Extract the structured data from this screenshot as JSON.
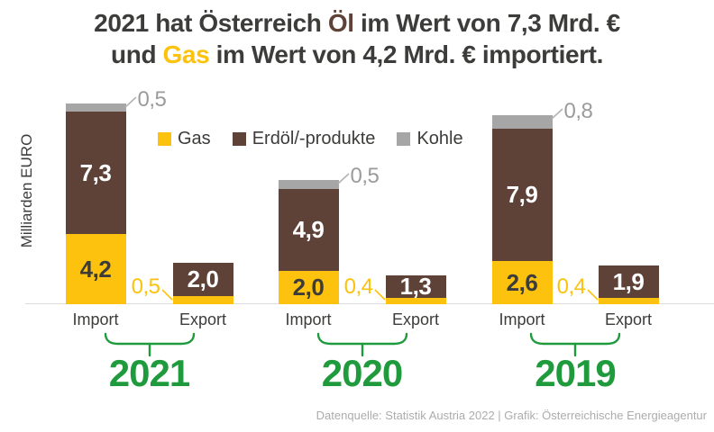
{
  "title": {
    "lines": [
      {
        "segments": [
          {
            "text": "2021 hat Österreich ",
            "color": "#3C3C3B"
          },
          {
            "text": "Öl",
            "color": "#5E4137"
          },
          {
            "text": " im Wert von 7,3 Mrd. €",
            "color": "#3C3C3B"
          }
        ]
      },
      {
        "segments": [
          {
            "text": "und ",
            "color": "#3C3C3B"
          },
          {
            "text": "Gas",
            "color": "#FCC20E"
          },
          {
            "text": " im Wert von 4,2 Mrd. € importiert.",
            "color": "#3C3C3B"
          }
        ]
      }
    ]
  },
  "axis": {
    "ylabel": "Milliarden EURO"
  },
  "legend": {
    "items": [
      {
        "label": "Gas",
        "color": "#FCC20E"
      },
      {
        "label": "Erdöl/-produkte",
        "color": "#5E4137"
      },
      {
        "label": "Kohle",
        "color": "#A6A6A6"
      }
    ]
  },
  "footer": {
    "source": "Datenquelle: Statistik Austria 2022 | Grafik: Österreichische Energieagentur"
  },
  "colors": {
    "accent_green": "#1F9B3D",
    "text_dark": "#3C3C3B",
    "callout_gray": "#9C9B9B",
    "gas_yellow": "#FCC20E",
    "oil_brown": "#5E4137",
    "coal_gray": "#A6A6A6",
    "axis_gray": "#DCDCDC"
  },
  "chart_data": {
    "type": "bar",
    "stacked": true,
    "title": "2021 hat Österreich Öl im Wert von 7,3 Mrd. € und Gas im Wert von 4,2 Mrd. € importiert.",
    "ylabel": "Milliarden EURO",
    "unit": "Mrd. EUR",
    "grid": false,
    "legend_position": "top-left-of-plot",
    "series": [
      "Gas",
      "Erdöl/-produkte",
      "Kohle"
    ],
    "series_colors": {
      "Gas": "#FCC20E",
      "Erdöl/-produkte": "#5E4137",
      "Kohle": "#A6A6A6"
    },
    "categories_per_group": [
      "Import",
      "Export"
    ],
    "groups": [
      {
        "year": "2021",
        "bars": [
          {
            "label": "Import",
            "total": 12.0,
            "segments": [
              {
                "series": "Gas",
                "value": 4.2,
                "display": "4,2",
                "label_pos": "inside"
              },
              {
                "series": "Erdöl/-produkte",
                "value": 7.3,
                "display": "7,3",
                "label_pos": "inside"
              },
              {
                "series": "Kohle",
                "value": 0.5,
                "display": "0,5",
                "label_pos": "callout-top"
              }
            ]
          },
          {
            "label": "Export",
            "total": 2.5,
            "segments": [
              {
                "series": "Gas",
                "value": 0.5,
                "display": "0,5",
                "label_pos": "callout-left"
              },
              {
                "series": "Erdöl/-produkte",
                "value": 2.0,
                "display": "2,0",
                "label_pos": "inside"
              }
            ]
          }
        ]
      },
      {
        "year": "2020",
        "bars": [
          {
            "label": "Import",
            "total": 7.4,
            "segments": [
              {
                "series": "Gas",
                "value": 2.0,
                "display": "2,0",
                "label_pos": "inside"
              },
              {
                "series": "Erdöl/-produkte",
                "value": 4.9,
                "display": "4,9",
                "label_pos": "inside"
              },
              {
                "series": "Kohle",
                "value": 0.5,
                "display": "0,5",
                "label_pos": "callout-top"
              }
            ]
          },
          {
            "label": "Export",
            "total": 1.7,
            "segments": [
              {
                "series": "Gas",
                "value": 0.4,
                "display": "0,4",
                "label_pos": "callout-left"
              },
              {
                "series": "Erdöl/-produkte",
                "value": 1.3,
                "display": "1,3",
                "label_pos": "inside"
              }
            ]
          }
        ]
      },
      {
        "year": "2019",
        "bars": [
          {
            "label": "Import",
            "total": 11.3,
            "segments": [
              {
                "series": "Gas",
                "value": 2.6,
                "display": "2,6",
                "label_pos": "inside"
              },
              {
                "series": "Erdöl/-produkte",
                "value": 7.9,
                "display": "7,9",
                "label_pos": "inside"
              },
              {
                "series": "Kohle",
                "value": 0.8,
                "display": "0,8",
                "label_pos": "callout-top"
              }
            ]
          },
          {
            "label": "Export",
            "total": 2.3,
            "segments": [
              {
                "series": "Gas",
                "value": 0.4,
                "display": "0,4",
                "label_pos": "callout-left"
              },
              {
                "series": "Erdöl/-produkte",
                "value": 1.9,
                "display": "1,9",
                "label_pos": "inside"
              }
            ]
          }
        ]
      }
    ]
  }
}
